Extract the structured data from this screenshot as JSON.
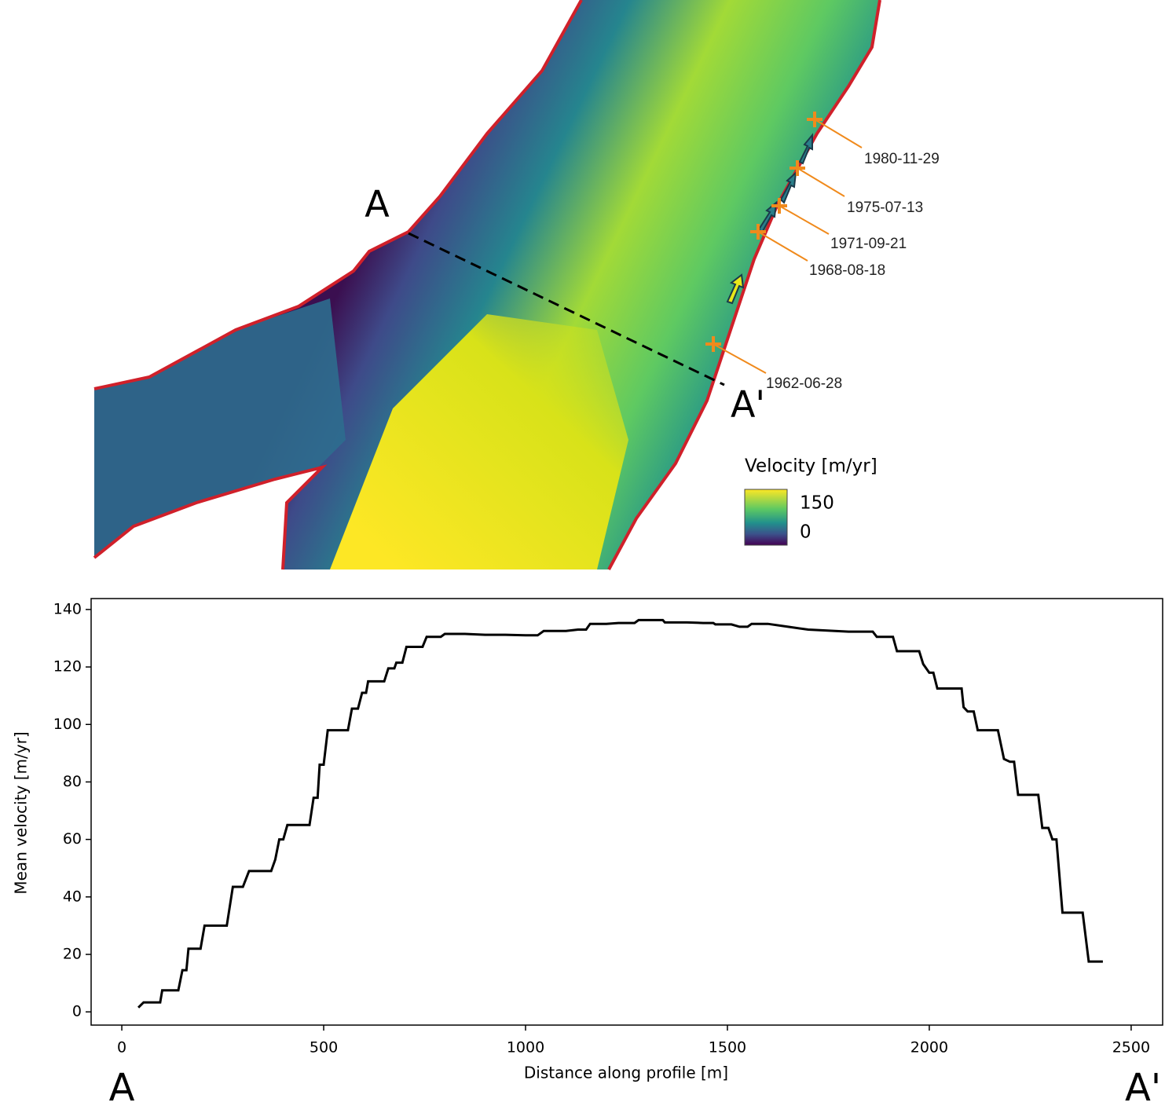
{
  "map": {
    "profile_start": "A",
    "profile_end": "A'",
    "dates": [
      "1980-11-29",
      "1975-07-13",
      "1971-09-21",
      "1968-08-18",
      "1962-06-28"
    ],
    "legend": {
      "title": "Velocity [m/yr]",
      "ticks": [
        150,
        0
      ]
    }
  },
  "chart_data": {
    "type": "line",
    "xlabel": "Distance along profile [m]",
    "ylabel": "Mean velocity [m/yr]",
    "end_labels": [
      "A",
      "A'"
    ],
    "color": "#000000",
    "x": [
      41,
      54,
      95,
      100,
      140,
      150,
      160,
      165,
      195,
      205,
      260,
      275,
      300,
      315,
      370,
      380,
      390,
      400,
      410,
      465,
      475,
      485,
      490,
      500,
      510,
      560,
      570,
      585,
      595,
      605,
      610,
      650,
      660,
      675,
      680,
      695,
      705,
      745,
      755,
      790,
      800,
      850,
      900,
      950,
      1000,
      1030,
      1045,
      1100,
      1130,
      1150,
      1160,
      1200,
      1230,
      1270,
      1280,
      1340,
      1345,
      1400,
      1440,
      1465,
      1470,
      1510,
      1530,
      1550,
      1560,
      1600,
      1650,
      1700,
      1800,
      1860,
      1870,
      1910,
      1920,
      1975,
      1985,
      2000,
      2010,
      2020,
      2080,
      2085,
      2095,
      2110,
      2120,
      2170,
      2185,
      2200,
      2210,
      2220,
      2270,
      2280,
      2295,
      2305,
      2315,
      2330,
      2380,
      2395,
      2430
    ],
    "values": [
      1.5,
      3.3,
      3.3,
      7.5,
      7.5,
      14.5,
      14.5,
      22,
      22,
      30,
      30,
      43.5,
      43.5,
      49,
      49,
      53,
      60,
      60,
      65,
      65,
      74.5,
      74.5,
      86,
      86,
      98,
      98,
      105.5,
      105.5,
      111,
      111,
      115,
      115,
      119.5,
      119.5,
      121.5,
      121.5,
      127,
      127,
      130.5,
      130.5,
      131.5,
      131.5,
      131.2,
      131.2,
      131,
      131,
      132.5,
      132.5,
      133,
      133,
      135,
      135,
      135.3,
      135.3,
      136.3,
      136.3,
      135.5,
      135.5,
      135.3,
      135.3,
      134.8,
      134.8,
      134,
      134,
      135,
      135,
      134,
      133,
      132.3,
      132.3,
      130.5,
      130.5,
      125.5,
      125.5,
      121,
      118,
      118,
      112.5,
      112.5,
      106,
      104.5,
      104.5,
      98,
      98,
      88,
      87,
      87,
      75.5,
      75.5,
      64,
      64,
      60,
      60,
      34.5,
      34.5,
      17.5,
      17.5
    ],
    "xlim": [
      -76,
      2578
    ],
    "ylim": [
      -4.6,
      143.8
    ],
    "xticks": [
      0,
      500,
      1000,
      1500,
      2000,
      2500
    ],
    "yticks": [
      0,
      20,
      40,
      60,
      80,
      100,
      120,
      140
    ]
  }
}
